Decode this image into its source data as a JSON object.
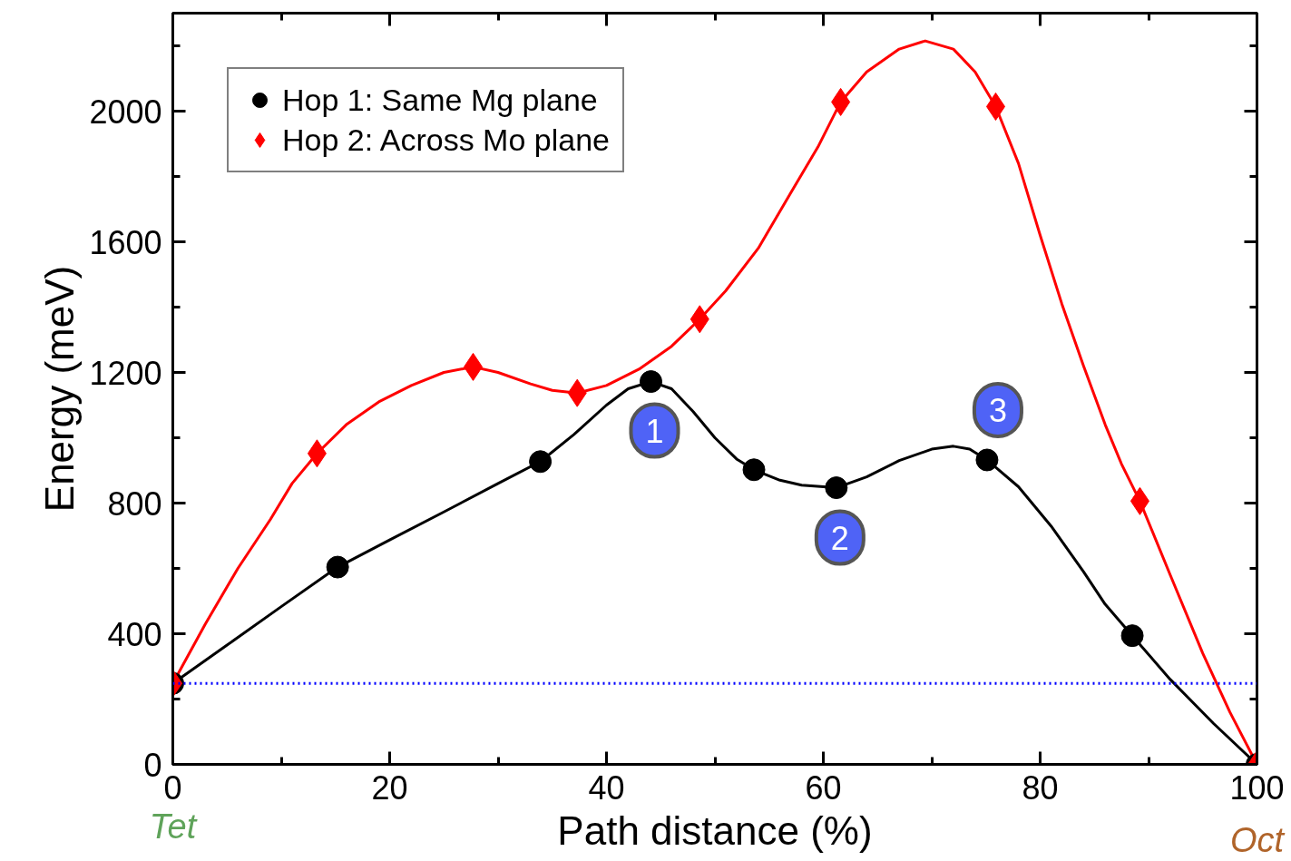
{
  "chart_data": {
    "type": "line",
    "xlabel": "Path distance (%)",
    "ylabel": "Energy (meV)",
    "xlim": [
      0,
      100
    ],
    "xticks": [
      0,
      20,
      40,
      60,
      80,
      100
    ],
    "ylim": [
      0,
      2300
    ],
    "yticks": [
      0,
      400,
      800,
      1200,
      1600,
      2000
    ],
    "grid": false,
    "legend": "top left",
    "line_style": "solid",
    "series": [
      {
        "color": "#000000",
        "marker": "none",
        "x": [
          0,
          5,
          10,
          15.2,
          20,
          25,
          30,
          33.9,
          37,
          40,
          42,
          44.1,
          46,
          48,
          50,
          52,
          53.6,
          56,
          58,
          61.2,
          64,
          67,
          70,
          72,
          73.5,
          75.1,
          78,
          81,
          84,
          86,
          88.5,
          92,
          96,
          100
        ],
        "values": [
          248,
          365,
          483,
          604,
          687,
          773,
          860,
          927,
          1010,
          1100,
          1150,
          1172,
          1150,
          1080,
          1000,
          935,
          902,
          870,
          855,
          847,
          880,
          930,
          965,
          974,
          965,
          932,
          850,
          730,
          590,
          490,
          394,
          260,
          125,
          0
        ]
      },
      {
        "color": "#ff0000",
        "marker": "none",
        "x": [
          0,
          3,
          6,
          9,
          11,
          13.3,
          16,
          19,
          22,
          25,
          27.7,
          30,
          33,
          35,
          37.3,
          40,
          43,
          46,
          48.6,
          51,
          54,
          57,
          59.5,
          61.6,
          64,
          67,
          69.4,
          72,
          74,
          75.9,
          78,
          80,
          82,
          84,
          86,
          87.5,
          89.2,
          92,
          95,
          97.5,
          100
        ],
        "values": [
          248,
          430,
          600,
          750,
          860,
          952,
          1040,
          1110,
          1160,
          1200,
          1217,
          1200,
          1165,
          1145,
          1137,
          1160,
          1210,
          1280,
          1363,
          1450,
          1580,
          1750,
          1890,
          2028,
          2120,
          2190,
          2215,
          2190,
          2120,
          2014,
          1840,
          1620,
          1410,
          1220,
          1040,
          920,
          806,
          580,
          340,
          160,
          0
        ]
      },
      {
        "type": "scatter",
        "name": "Hop 1: Same Mg plane",
        "color": "#000000",
        "marker": "circle",
        "x": [
          0,
          15.2,
          33.9,
          44.1,
          53.6,
          61.2,
          75.1,
          88.5,
          100
        ],
        "values": [
          248,
          604,
          927,
          1172,
          902,
          847,
          932,
          394,
          0
        ]
      },
      {
        "type": "scatter",
        "name": "Hop 2: Across Mo plane",
        "color": "#ff0000",
        "marker": "diamond",
        "x": [
          0,
          13.3,
          27.7,
          37.3,
          48.6,
          61.6,
          75.9,
          89.2,
          100
        ],
        "values": [
          248,
          952,
          1217,
          1137,
          1363,
          2028,
          2014,
          806,
          0
        ]
      }
    ],
    "ref_lines": [
      {
        "axis": "y",
        "value": 248,
        "color": "#0000ff",
        "line_style": "dotted"
      }
    ],
    "annotations": [
      {
        "text": "1",
        "x": 44.1,
        "y": 1172
      },
      {
        "text": "2",
        "x": 61.2,
        "y": 847
      },
      {
        "text": "3",
        "x": 75.1,
        "y": 932
      },
      "Tet",
      "Oct"
    ]
  }
}
